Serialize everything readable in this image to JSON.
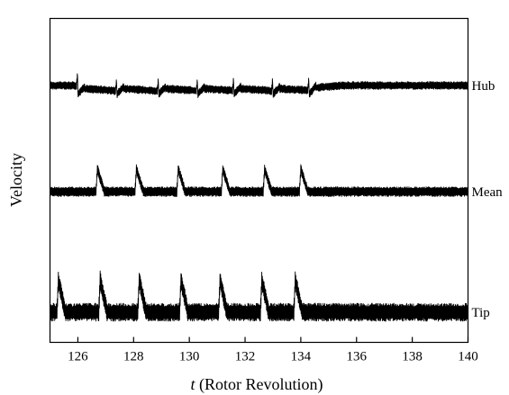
{
  "chart_data": {
    "type": "line",
    "title": "",
    "xlabel_italic": "t",
    "xlabel_rest": " (Rotor Revolution)",
    "ylabel": "Velocity",
    "xlim": [
      125,
      140
    ],
    "xticks": [
      126,
      128,
      130,
      132,
      134,
      136,
      138,
      140
    ],
    "xtick_labels": [
      "126",
      "128",
      "130",
      "132",
      "134",
      "136",
      "138",
      "140"
    ],
    "yticks_shown": false,
    "grid": false,
    "legend": "none",
    "series": [
      {
        "name": "Hub",
        "label_position": "right-end",
        "baseline_offset": 2,
        "periodic_oscillation_amplitude": 0.12,
        "transient_events_t": [
          126.0,
          127.4,
          128.9,
          130.3,
          131.6,
          133.0,
          134.3
        ],
        "transient_event_amplitude": 0.45,
        "settled_after_t": 134.3
      },
      {
        "name": "Mean",
        "label_position": "right-end",
        "baseline_offset": 1,
        "periodic_oscillation_amplitude": 0.15,
        "transient_events_t": [
          126.7,
          128.1,
          129.6,
          131.2,
          132.7,
          134.0
        ],
        "transient_event_amplitude": 0.7,
        "settled_after_t": 134.0
      },
      {
        "name": "Tip",
        "label_position": "right-end",
        "baseline_offset": 0,
        "periodic_oscillation_amplitude": 0.25,
        "transient_events_t": [
          125.3,
          126.8,
          128.2,
          129.7,
          131.1,
          132.6,
          133.8
        ],
        "transient_event_amplitude": 0.9,
        "settled_after_t": 134.0
      }
    ]
  }
}
